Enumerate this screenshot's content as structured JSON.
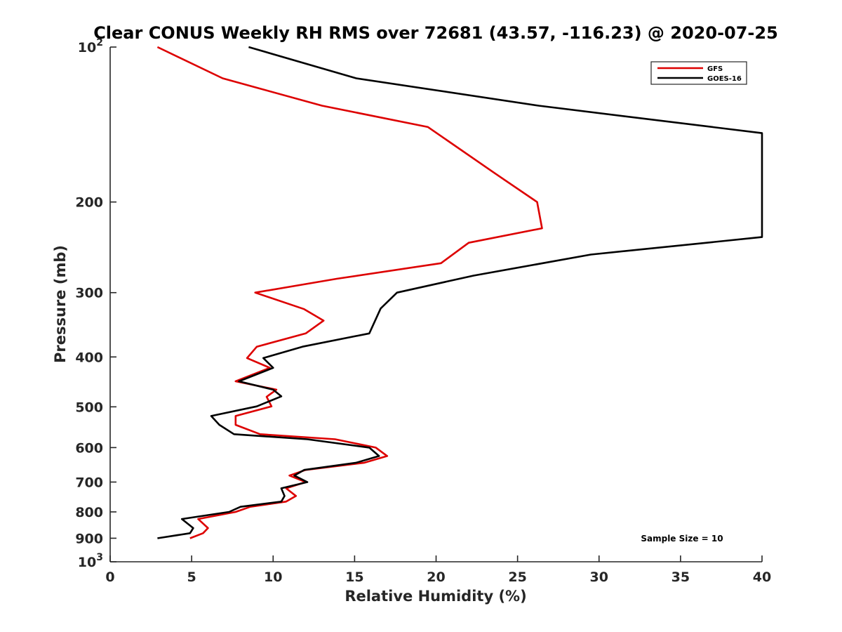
{
  "chart_data": {
    "type": "line",
    "title": "Clear CONUS Weekly RH RMS over 72681 (43.57, -116.23) @ 2020-07-25",
    "xlabel": "Relative Humidity (%)",
    "ylabel": "Pressure (mb)",
    "xlim": [
      0,
      40
    ],
    "ylim": [
      100,
      1000
    ],
    "y_scale": "log",
    "y_reversed": true,
    "grid": false,
    "legend_position": "top-right",
    "x_ticks": [
      "0",
      "5",
      "10",
      "15",
      "20",
      "25",
      "30",
      "35",
      "40"
    ],
    "y_ticks": [
      {
        "value": 100,
        "base": "10",
        "exp": "2"
      },
      {
        "value": 200,
        "label": "200"
      },
      {
        "value": 300,
        "label": "300"
      },
      {
        "value": 400,
        "label": "400"
      },
      {
        "value": 500,
        "label": "500"
      },
      {
        "value": 600,
        "label": "600"
      },
      {
        "value": 700,
        "label": "700"
      },
      {
        "value": 800,
        "label": "800"
      },
      {
        "value": 900,
        "label": "900"
      },
      {
        "value": 1000,
        "base": "10",
        "exp": "3"
      }
    ],
    "annotations": [
      {
        "text": "Sample Size = 10"
      }
    ],
    "series": [
      {
        "name": "GFS",
        "color": "#dd0000",
        "points": [
          [
            2.9,
            100
          ],
          [
            6.9,
            115
          ],
          [
            13.0,
            130
          ],
          [
            19.5,
            143
          ],
          [
            23.5,
            175
          ],
          [
            26.2,
            200
          ],
          [
            26.5,
            225
          ],
          [
            22.0,
            240
          ],
          [
            20.3,
            263
          ],
          [
            13.9,
            282
          ],
          [
            8.9,
            300
          ],
          [
            11.9,
            323
          ],
          [
            13.1,
            340
          ],
          [
            12.0,
            360
          ],
          [
            9.0,
            382
          ],
          [
            8.4,
            402
          ],
          [
            9.8,
            420
          ],
          [
            7.7,
            446
          ],
          [
            10.2,
            463
          ],
          [
            9.6,
            478
          ],
          [
            9.9,
            499
          ],
          [
            7.7,
            521
          ],
          [
            7.7,
            542
          ],
          [
            9.2,
            565
          ],
          [
            13.8,
            578
          ],
          [
            16.3,
            600
          ],
          [
            17.0,
            623
          ],
          [
            15.6,
            642
          ],
          [
            12.0,
            663
          ],
          [
            11.0,
            680
          ],
          [
            12.0,
            700
          ],
          [
            10.8,
            720
          ],
          [
            11.4,
            745
          ],
          [
            10.8,
            764
          ],
          [
            8.6,
            782
          ],
          [
            7.7,
            800
          ],
          [
            5.4,
            826
          ],
          [
            6.0,
            860
          ],
          [
            5.7,
            880
          ],
          [
            4.9,
            900
          ]
        ]
      },
      {
        "name": "GOES-16",
        "color": "#000000",
        "points": [
          [
            8.5,
            100
          ],
          [
            15.1,
            115
          ],
          [
            26.3,
            130
          ],
          [
            40.0,
            147
          ],
          [
            40.0,
            234
          ],
          [
            29.5,
            253
          ],
          [
            22.3,
            278
          ],
          [
            17.6,
            300
          ],
          [
            16.6,
            322
          ],
          [
            15.9,
            360
          ],
          [
            11.8,
            382
          ],
          [
            9.4,
            402
          ],
          [
            10.0,
            420
          ],
          [
            7.9,
            446
          ],
          [
            10.0,
            463
          ],
          [
            10.5,
            477
          ],
          [
            9.0,
            499
          ],
          [
            6.2,
            521
          ],
          [
            6.7,
            542
          ],
          [
            7.6,
            565
          ],
          [
            12.1,
            578
          ],
          [
            15.9,
            600
          ],
          [
            16.5,
            623
          ],
          [
            15.1,
            642
          ],
          [
            11.9,
            663
          ],
          [
            11.3,
            680
          ],
          [
            12.1,
            700
          ],
          [
            10.5,
            720
          ],
          [
            10.7,
            745
          ],
          [
            10.5,
            764
          ],
          [
            8.0,
            782
          ],
          [
            7.3,
            800
          ],
          [
            4.4,
            826
          ],
          [
            5.1,
            860
          ],
          [
            4.9,
            880
          ],
          [
            2.9,
            900
          ]
        ]
      }
    ]
  }
}
